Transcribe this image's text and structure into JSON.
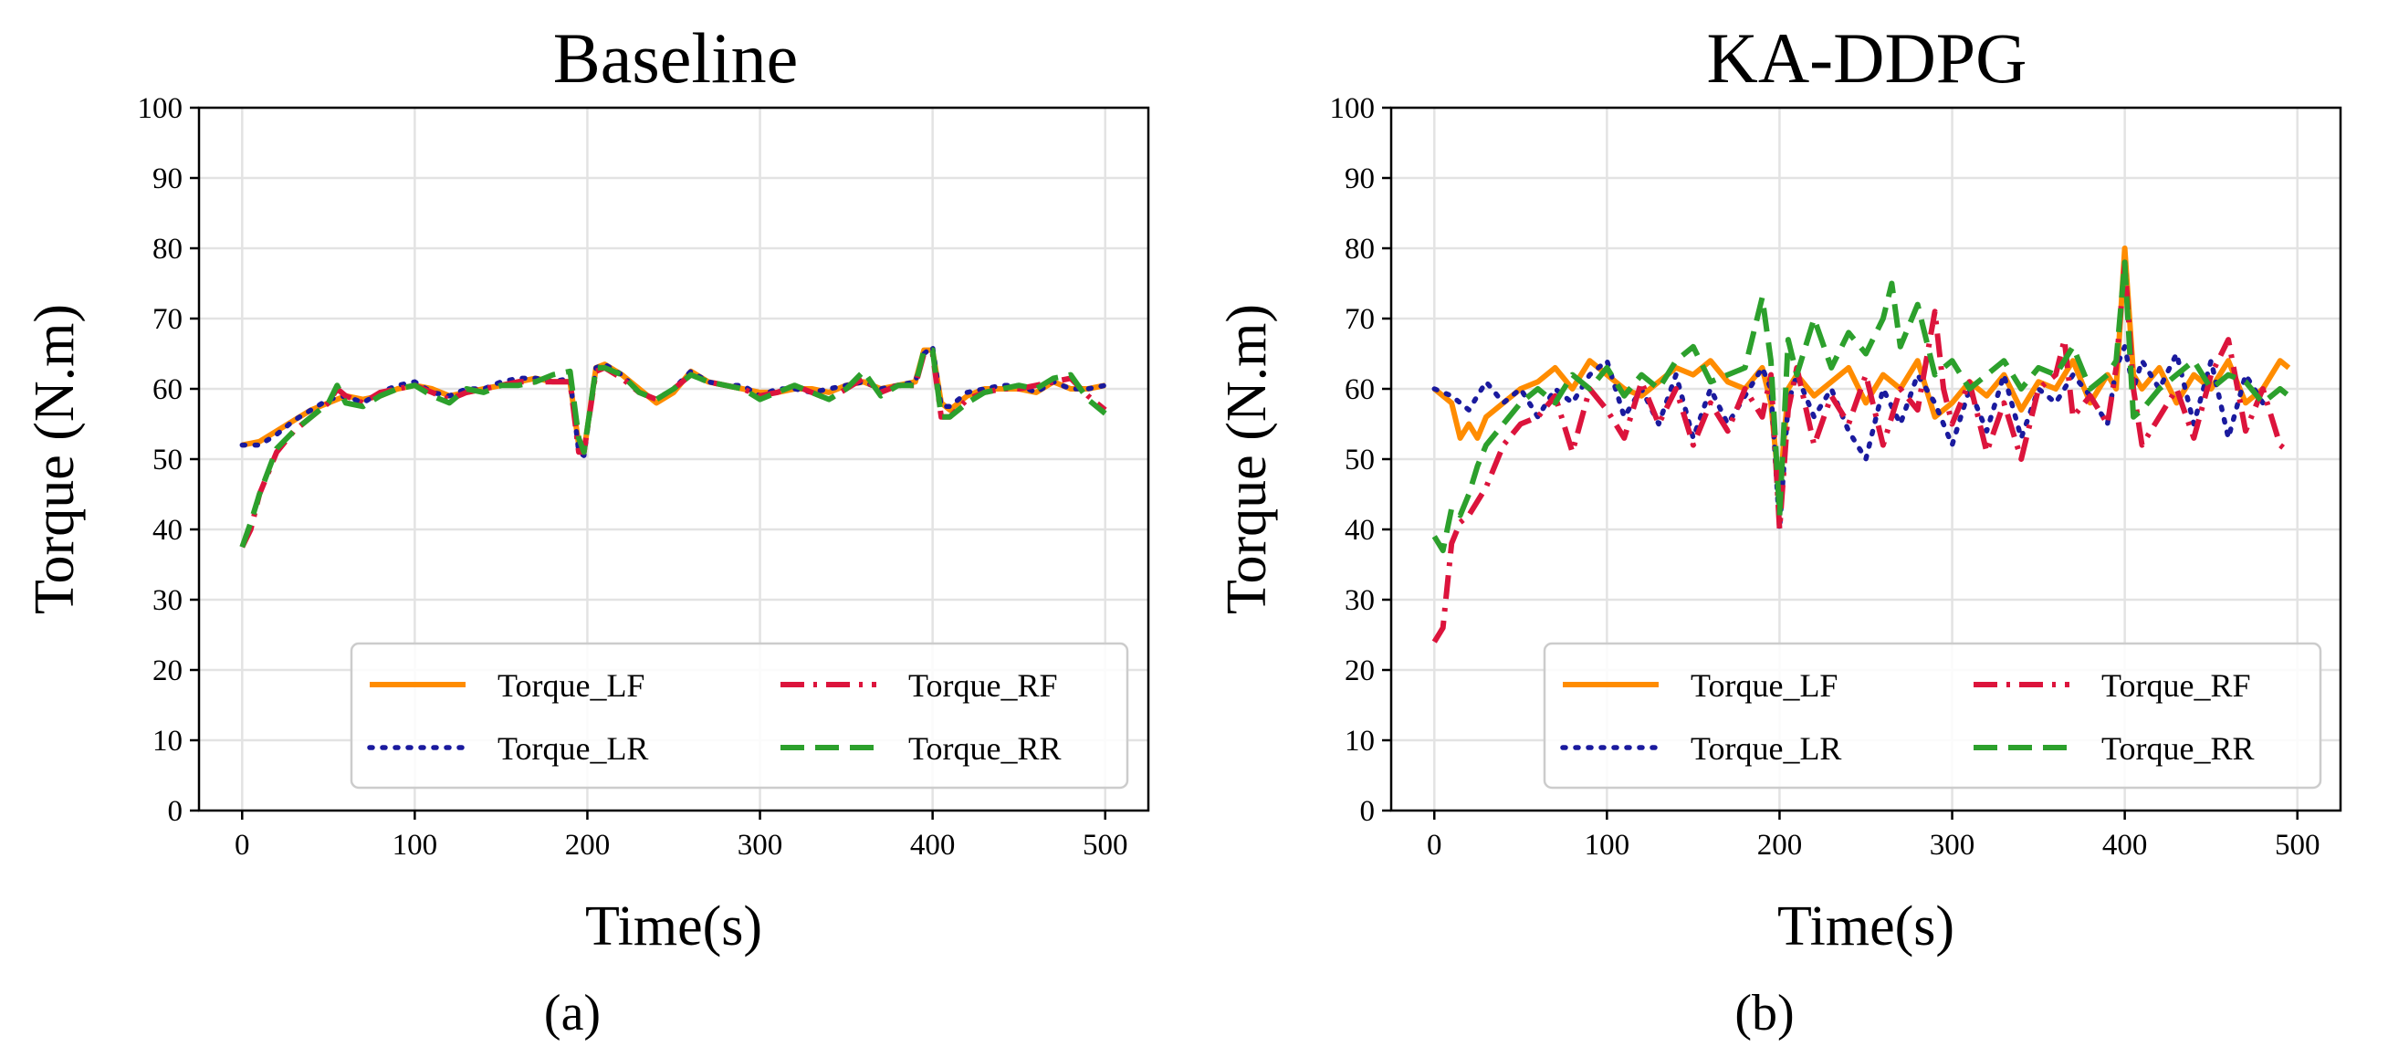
{
  "figure": {
    "panel_labels": [
      "(a)",
      "(b)"
    ]
  },
  "chart_data": [
    {
      "type": "line",
      "title": "Baseline",
      "xlabel": "Time(s)",
      "ylabel": "Torque (N.m)",
      "xlim": [
        -25,
        525
      ],
      "ylim": [
        0,
        100
      ],
      "xticks": [
        0,
        100,
        200,
        300,
        400,
        500
      ],
      "yticks": [
        0,
        10,
        20,
        30,
        40,
        50,
        60,
        70,
        80,
        90,
        100
      ],
      "grid": true,
      "legend_position": "lower-right",
      "legend_columns": 2,
      "series": [
        {
          "name": "Torque_LF",
          "color": "#ff8c00",
          "style": "solid",
          "x": [
            0,
            10,
            20,
            30,
            40,
            50,
            60,
            70,
            80,
            90,
            100,
            110,
            120,
            130,
            140,
            150,
            160,
            170,
            180,
            190,
            195,
            198,
            205,
            210,
            220,
            230,
            240,
            250,
            260,
            270,
            280,
            290,
            300,
            310,
            320,
            330,
            340,
            350,
            360,
            370,
            380,
            390,
            395,
            400,
            405,
            410,
            420,
            430,
            440,
            450,
            460,
            470,
            480,
            490,
            500
          ],
          "y": [
            52,
            52.5,
            54,
            55.5,
            57,
            58,
            59,
            58.5,
            59,
            60,
            60.5,
            60,
            59,
            59.5,
            60,
            60.5,
            61,
            61.5,
            61,
            61,
            52,
            51,
            63,
            63.5,
            62,
            60,
            58,
            59.5,
            62.5,
            61,
            60.5,
            60,
            59.5,
            59.5,
            60,
            60,
            59.5,
            60.5,
            61,
            60,
            60.5,
            61,
            65.5,
            65.5,
            58,
            57,
            59,
            60,
            60,
            60,
            59.5,
            61,
            60,
            60,
            60.5
          ]
        },
        {
          "name": "Torque_LR",
          "color": "#1a1a9e",
          "style": "dotted",
          "x": [
            0,
            10,
            20,
            30,
            40,
            50,
            60,
            70,
            80,
            90,
            100,
            110,
            120,
            130,
            140,
            150,
            160,
            170,
            180,
            190,
            195,
            198,
            205,
            210,
            220,
            230,
            240,
            250,
            260,
            270,
            280,
            290,
            300,
            310,
            320,
            330,
            340,
            350,
            360,
            370,
            380,
            390,
            395,
            400,
            405,
            410,
            420,
            430,
            440,
            450,
            460,
            470,
            480,
            490,
            500
          ],
          "y": [
            52,
            52,
            53.5,
            55.5,
            57,
            58.5,
            59,
            58,
            59.5,
            60.5,
            61,
            59.5,
            59,
            60,
            60,
            61,
            61.5,
            61.5,
            61,
            61.5,
            51,
            50.5,
            63,
            63.5,
            62,
            59.5,
            58.5,
            60,
            62.5,
            61,
            60.5,
            60.5,
            59,
            60,
            60,
            59.5,
            60,
            60.5,
            61,
            60,
            60.5,
            61,
            65,
            66,
            57.5,
            57.5,
            59.5,
            60,
            60.5,
            60.5,
            59.5,
            61,
            60,
            60,
            60.5
          ]
        },
        {
          "name": "Torque_RF",
          "color": "#dc143c",
          "style": "dashdot",
          "x": [
            0,
            5,
            10,
            20,
            30,
            40,
            50,
            55,
            60,
            70,
            80,
            90,
            100,
            110,
            120,
            130,
            140,
            150,
            160,
            170,
            180,
            190,
            195,
            198,
            205,
            210,
            220,
            230,
            240,
            250,
            260,
            270,
            280,
            290,
            300,
            310,
            320,
            330,
            340,
            350,
            360,
            370,
            380,
            390,
            395,
            400,
            405,
            410,
            420,
            430,
            440,
            450,
            460,
            470,
            480,
            490,
            500
          ],
          "y": [
            37.5,
            40,
            45,
            51,
            54,
            56,
            58,
            60,
            59,
            58,
            59.5,
            60,
            60.5,
            59.5,
            58.5,
            59.5,
            60,
            60.5,
            61,
            61,
            61,
            61,
            51,
            51,
            62.5,
            63,
            61.5,
            59.5,
            58.5,
            60,
            62,
            61,
            60.5,
            60,
            59,
            59.5,
            60.5,
            59.5,
            58.5,
            60,
            61.5,
            59.5,
            60.5,
            60.5,
            65,
            65,
            56,
            56,
            58.5,
            59.5,
            60,
            60,
            60.5,
            61,
            61.5,
            59,
            57
          ]
        },
        {
          "name": "Torque_RR",
          "color": "#2ca02c",
          "style": "dashed",
          "x": [
            0,
            5,
            10,
            20,
            30,
            40,
            50,
            55,
            60,
            70,
            80,
            90,
            100,
            110,
            120,
            130,
            140,
            150,
            160,
            170,
            180,
            190,
            195,
            198,
            205,
            210,
            220,
            230,
            240,
            250,
            260,
            270,
            280,
            290,
            300,
            310,
            320,
            330,
            340,
            350,
            360,
            370,
            380,
            390,
            395,
            400,
            405,
            410,
            420,
            430,
            440,
            450,
            460,
            470,
            480,
            490,
            500
          ],
          "y": [
            37.5,
            41,
            45,
            51.5,
            54,
            56,
            58,
            60.5,
            58,
            57.5,
            59,
            60,
            60.5,
            59,
            58,
            60,
            59.5,
            60.5,
            60.5,
            61,
            62,
            62.5,
            53,
            51,
            63,
            63,
            62,
            59.5,
            58.5,
            60,
            62,
            61,
            60.5,
            60,
            58.5,
            59.5,
            60.5,
            59.5,
            58.5,
            60,
            62.5,
            59,
            60.5,
            60.5,
            65.5,
            65.5,
            56,
            56,
            58,
            59.5,
            60,
            60.5,
            60,
            61.5,
            62,
            58.5,
            56.5
          ]
        }
      ]
    },
    {
      "type": "line",
      "title": "KA-DDPG",
      "xlabel": "Time(s)",
      "ylabel": "Torque (N.m)",
      "xlim": [
        -25,
        525
      ],
      "ylim": [
        0,
        100
      ],
      "xticks": [
        0,
        100,
        200,
        300,
        400,
        500
      ],
      "yticks": [
        0,
        10,
        20,
        30,
        40,
        50,
        60,
        70,
        80,
        90,
        100
      ],
      "grid": true,
      "legend_position": "lower-right",
      "legend_columns": 2,
      "series": [
        {
          "name": "Torque_LF",
          "color": "#ff8c00",
          "style": "solid",
          "x": [
            0,
            10,
            15,
            20,
            25,
            30,
            40,
            50,
            60,
            70,
            80,
            90,
            100,
            110,
            120,
            130,
            140,
            150,
            160,
            170,
            180,
            190,
            195,
            200,
            205,
            210,
            220,
            230,
            240,
            250,
            260,
            270,
            280,
            290,
            300,
            310,
            320,
            330,
            340,
            350,
            360,
            370,
            380,
            390,
            395,
            400,
            405,
            410,
            420,
            430,
            440,
            450,
            460,
            470,
            480,
            490,
            495
          ],
          "y": [
            60,
            58,
            53,
            55,
            53,
            56,
            58,
            60,
            61,
            63,
            60,
            64,
            62,
            60,
            59,
            61,
            63,
            62,
            64,
            61,
            60,
            63,
            58,
            45,
            60,
            62,
            59,
            61,
            63,
            58,
            62,
            60,
            64,
            56,
            58,
            61,
            59,
            62,
            57,
            61,
            60,
            64,
            58,
            62,
            60,
            80,
            62,
            60,
            63,
            58,
            62,
            60,
            64,
            58,
            60,
            64,
            63
          ]
        },
        {
          "name": "Torque_LR",
          "color": "#1a1a9e",
          "style": "dotted",
          "x": [
            0,
            10,
            20,
            30,
            40,
            50,
            60,
            70,
            80,
            90,
            100,
            110,
            120,
            130,
            140,
            150,
            160,
            170,
            180,
            190,
            195,
            200,
            205,
            210,
            220,
            230,
            240,
            250,
            260,
            270,
            280,
            290,
            300,
            310,
            320,
            330,
            340,
            350,
            360,
            370,
            380,
            390,
            395,
            400,
            405,
            410,
            420,
            430,
            440,
            450,
            460,
            470,
            480,
            490,
            495
          ],
          "y": [
            60,
            59,
            57,
            61,
            58,
            60,
            56,
            60,
            58,
            62,
            64,
            56,
            60,
            55,
            62,
            53,
            60,
            55,
            59,
            63,
            60,
            40,
            58,
            62,
            56,
            60,
            54,
            50,
            60,
            55,
            62,
            58,
            52,
            60,
            54,
            62,
            53,
            60,
            58,
            62,
            59,
            55,
            63,
            66,
            60,
            64,
            60,
            65,
            55,
            64,
            53,
            62,
            58,
            60,
            59
          ]
        },
        {
          "name": "Torque_RF",
          "color": "#dc143c",
          "style": "dashdot",
          "x": [
            0,
            5,
            10,
            15,
            20,
            30,
            40,
            50,
            60,
            70,
            80,
            90,
            100,
            110,
            120,
            130,
            140,
            150,
            160,
            170,
            180,
            190,
            195,
            200,
            205,
            210,
            220,
            230,
            240,
            250,
            260,
            270,
            280,
            290,
            295,
            300,
            310,
            320,
            330,
            340,
            350,
            360,
            365,
            370,
            380,
            390,
            395,
            400,
            405,
            410,
            420,
            430,
            440,
            450,
            460,
            470,
            480,
            490,
            495
          ],
          "y": [
            24,
            26,
            38,
            41,
            42,
            46,
            52,
            55,
            56,
            59,
            51,
            60,
            57,
            53,
            61,
            55,
            60,
            52,
            58,
            54,
            60,
            56,
            62,
            40,
            57,
            63,
            52,
            59,
            55,
            62,
            52,
            60,
            57,
            71,
            60,
            55,
            61,
            51,
            58,
            50,
            60,
            62,
            67,
            56,
            59,
            55,
            63,
            78,
            60,
            52,
            56,
            60,
            53,
            62,
            67,
            54,
            60,
            52,
            51
          ]
        },
        {
          "name": "Torque_RR",
          "color": "#2ca02c",
          "style": "dashed",
          "x": [
            0,
            5,
            10,
            15,
            20,
            25,
            30,
            40,
            50,
            60,
            70,
            80,
            90,
            100,
            110,
            120,
            130,
            140,
            150,
            160,
            170,
            180,
            190,
            195,
            200,
            205,
            210,
            220,
            230,
            240,
            250,
            260,
            265,
            270,
            280,
            290,
            300,
            310,
            320,
            330,
            340,
            350,
            360,
            370,
            380,
            390,
            395,
            400,
            405,
            410,
            420,
            430,
            440,
            450,
            460,
            470,
            480,
            490,
            495
          ],
          "y": [
            39,
            37,
            43,
            42,
            45,
            49,
            52,
            55,
            58,
            60,
            58,
            62,
            60,
            63,
            59,
            62,
            60,
            64,
            66,
            61,
            62,
            63,
            73,
            64,
            42,
            67,
            62,
            70,
            63,
            68,
            65,
            70,
            75,
            66,
            72,
            62,
            64,
            60,
            62,
            64,
            60,
            63,
            62,
            66,
            60,
            62,
            64,
            78,
            56,
            57,
            60,
            62,
            64,
            60,
            62,
            61,
            58,
            60,
            59
          ]
        }
      ]
    }
  ]
}
